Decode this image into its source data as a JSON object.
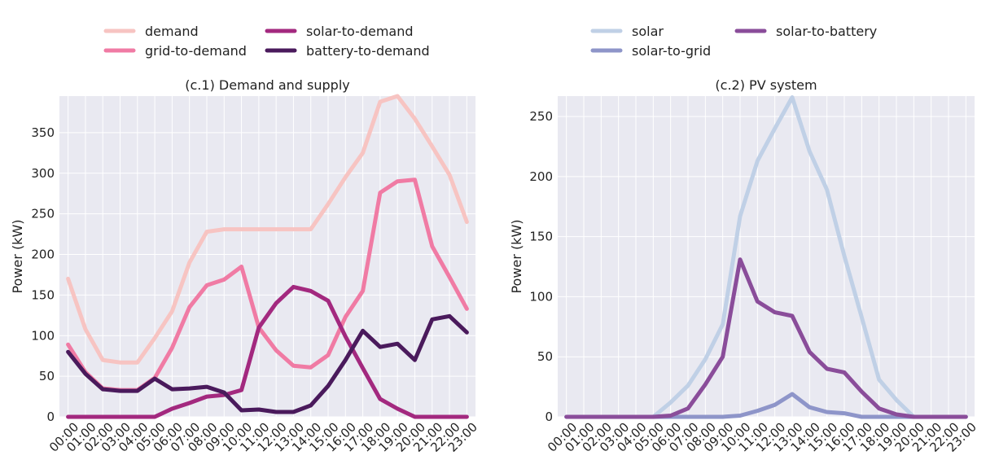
{
  "chart_data": [
    {
      "type": "line",
      "title": "(c.1) Demand and supply",
      "ylabel": "Power (kW)",
      "xlabel": "",
      "ylim": [
        0,
        395
      ],
      "yticks": [
        0,
        50,
        100,
        150,
        200,
        250,
        300,
        350
      ],
      "x": [
        "00:00",
        "01:00",
        "02:00",
        "03:00",
        "04:00",
        "05:00",
        "06:00",
        "07:00",
        "08:00",
        "09:00",
        "10:00",
        "11:00",
        "12:00",
        "13:00",
        "14:00",
        "15:00",
        "16:00",
        "17:00",
        "18:00",
        "19:00",
        "20:00",
        "21:00",
        "22:00",
        "23:00"
      ],
      "grid": true,
      "legend": "top",
      "series": [
        {
          "name": "demand",
          "color": "#f7c4c2",
          "values": [
            170,
            108,
            70,
            67,
            67,
            97,
            130,
            190,
            228,
            231,
            231,
            231,
            231,
            231,
            231,
            262,
            295,
            325,
            388,
            395,
            367,
            333,
            298,
            240
          ]
        },
        {
          "name": "grid-to-demand",
          "color": "#f07ba4",
          "values": [
            89,
            55,
            35,
            33,
            33,
            48,
            85,
            135,
            162,
            169,
            185,
            110,
            82,
            63,
            61,
            76,
            123,
            155,
            276,
            290,
            292,
            210,
            172,
            133
          ]
        },
        {
          "name": "solar-to-demand",
          "color": "#a3297f",
          "values": [
            0,
            0,
            0,
            0,
            0,
            0,
            10,
            17,
            25,
            27,
            33,
            110,
            140,
            160,
            155,
            143,
            99,
            60,
            22,
            10,
            0,
            0,
            0,
            0
          ]
        },
        {
          "name": "battery-to-demand",
          "color": "#4a1a5c",
          "values": [
            80,
            53,
            34,
            32,
            32,
            47,
            34,
            35,
            37,
            30,
            8,
            9,
            6,
            6,
            14,
            38,
            70,
            106,
            86,
            90,
            70,
            120,
            124,
            104
          ]
        }
      ]
    },
    {
      "type": "line",
      "title": "(c.2) PV system",
      "ylabel": "Power (kW)",
      "xlabel": "",
      "ylim": [
        0,
        267
      ],
      "yticks": [
        0,
        50,
        100,
        150,
        200,
        250
      ],
      "x": [
        "00:00",
        "01:00",
        "02:00",
        "03:00",
        "04:00",
        "05:00",
        "06:00",
        "07:00",
        "08:00",
        "09:00",
        "10:00",
        "11:00",
        "12:00",
        "13:00",
        "14:00",
        "15:00",
        "16:00",
        "17:00",
        "18:00",
        "19:00",
        "20:00",
        "21:00",
        "22:00",
        "23:00"
      ],
      "grid": true,
      "legend": "top",
      "series": [
        {
          "name": "solar",
          "color": "#c0d0e6",
          "values": [
            0,
            0,
            0,
            0,
            0,
            0,
            12,
            26,
            48,
            77,
            167,
            213,
            240,
            266,
            221,
            189,
            134,
            83,
            31,
            14,
            0,
            0,
            0,
            0
          ]
        },
        {
          "name": "solar-to-grid",
          "color": "#8e95c9",
          "values": [
            0,
            0,
            0,
            0,
            0,
            0,
            0,
            0,
            0,
            0,
            1,
            5,
            10,
            19,
            8,
            4,
            3,
            0,
            0,
            0,
            0,
            0,
            0,
            0
          ]
        },
        {
          "name": "solar-to-battery",
          "color": "#8a4d9a",
          "values": [
            0,
            0,
            0,
            0,
            0,
            0,
            1,
            7,
            27,
            50,
            131,
            96,
            87,
            84,
            54,
            40,
            37,
            21,
            7,
            2,
            0,
            0,
            0,
            0
          ]
        }
      ]
    }
  ]
}
